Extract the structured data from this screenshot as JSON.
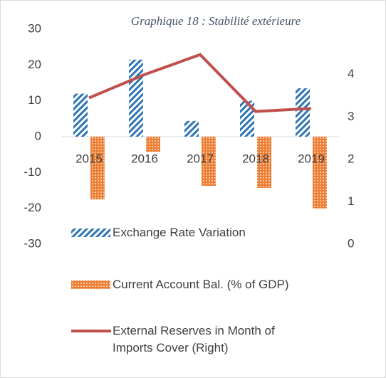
{
  "chart_data": {
    "type": "bar",
    "title": "Graphique 18 : Stabilité extérieure",
    "categories": [
      "2015",
      "2016",
      "2017",
      "2018",
      "2019"
    ],
    "series": [
      {
        "name": "Exchange Rate Variation",
        "color": "#2e75b6",
        "values": [
          12,
          21.5,
          4.4,
          10,
          13.5
        ]
      },
      {
        "name": "Current Account Bal. (% of GDP)",
        "color": "#ed7d31",
        "values": [
          -17.5,
          -4.2,
          -13.7,
          -14.3,
          -20
        ]
      },
      {
        "name": "External Reserves in Month of Imports Cover (Right)",
        "color": "#c0504d",
        "type": "line",
        "axis": "y2",
        "values": [
          3.45,
          4.0,
          4.47,
          3.13,
          3.2
        ]
      }
    ],
    "ylim": [
      -30,
      30
    ],
    "yticks": [
      -30,
      -20,
      -10,
      0,
      10,
      20,
      30
    ],
    "y2lim": [
      0,
      5.07
    ],
    "y2ticks": [
      0,
      1,
      2,
      3,
      4
    ],
    "grid": false,
    "legend": "bottom"
  }
}
